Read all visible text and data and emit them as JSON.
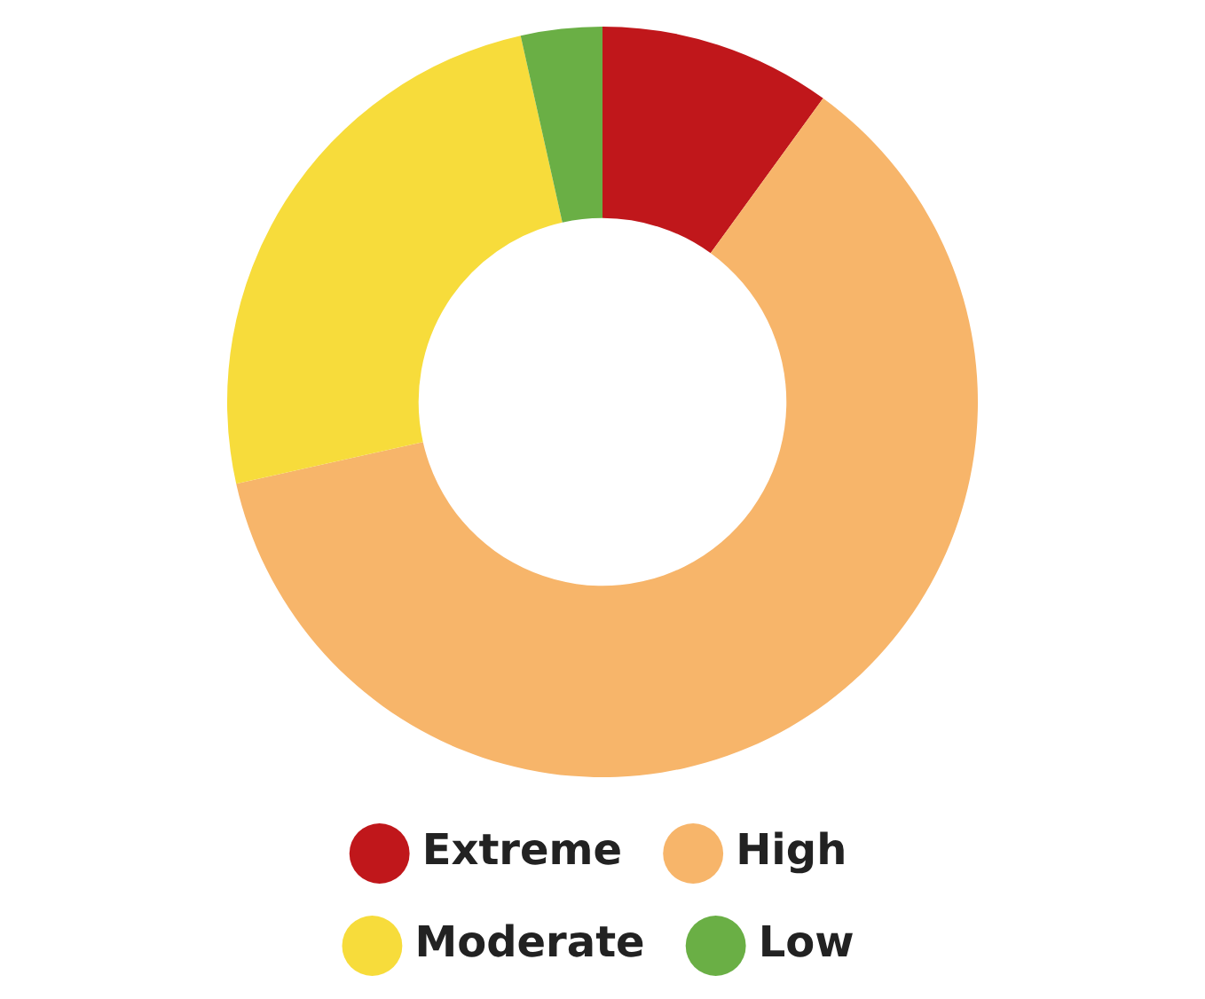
{
  "chart_data": {
    "type": "donut",
    "categories": [
      "Extreme",
      "High",
      "Moderate",
      "Low"
    ],
    "values": [
      10,
      61.5,
      25,
      3.5
    ],
    "colors": [
      "#c0171b",
      "#f7b56a",
      "#f7dc3b",
      "#6aaf45"
    ],
    "legend": "bottom"
  }
}
